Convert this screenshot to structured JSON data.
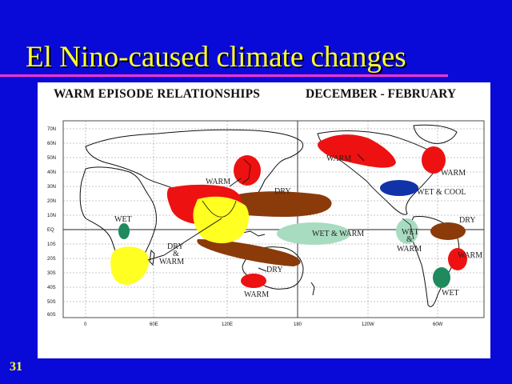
{
  "slide": {
    "title": "El Nino-caused climate changes",
    "number": "31"
  },
  "figure": {
    "heading": "WARM EPISODE RELATIONSHIPS",
    "period": "DECEMBER - FEBRUARY",
    "lat_ticks": [
      "70N",
      "60N",
      "50N",
      "40N",
      "30N",
      "20N",
      "10N",
      "EQ",
      "10S",
      "20S",
      "30S",
      "40S",
      "50S",
      "60S"
    ],
    "lon_ticks": [
      "0",
      "60E",
      "120E",
      "180",
      "120W",
      "60W"
    ],
    "regions": [
      {
        "label": "WARM",
        "kind": "warm",
        "color": "#ee1111"
      },
      {
        "label": "DRY",
        "kind": "dry",
        "color": "#8b3a0a"
      },
      {
        "label": "WET",
        "kind": "wet",
        "color": "#1e8a5e"
      },
      {
        "label": "WET & WARM",
        "kind": "wet",
        "color": "#a8dcc0"
      },
      {
        "label": "WET & COOL",
        "kind": "wet-cool",
        "color": "#1133aa"
      },
      {
        "label": "DRY & WARM",
        "kind": "dry-warm",
        "color": "#ffff22"
      }
    ],
    "labels": {
      "warm_japan": "WARM",
      "warm_alaska": "WARM",
      "warm_canada": "WARM",
      "wet_cool_us": "WET & COOL",
      "dry_pacific": "DRY",
      "dry_south_america": "DRY",
      "wet_east_africa": "WET",
      "dry_warm_africa_1": "DRY",
      "dry_warm_africa_2": "&",
      "dry_warm_africa_3": "WARM",
      "wet_warm_pacific": "WET & WARM",
      "wet_peru_1": "WET",
      "wet_peru_2": "&",
      "wet_peru_3": "WARM",
      "warm_brazil": "WARM",
      "dry_australia": "DRY",
      "warm_australia": "WARM",
      "wet_argentina": "WET"
    }
  }
}
